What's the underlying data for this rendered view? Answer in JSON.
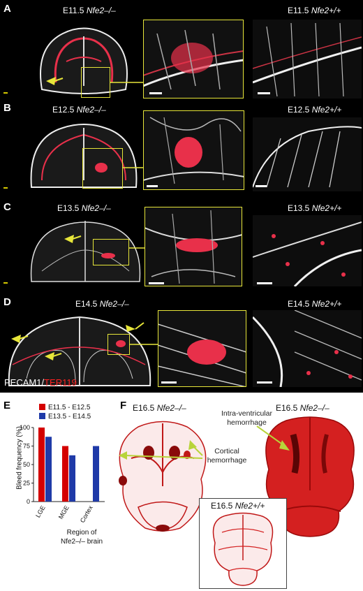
{
  "panels": {
    "A": {
      "letter": "A",
      "left": "E11.5",
      "gene": "Nfe2",
      "left_geno": "–/–",
      "right": "E11.5",
      "right_geno": "+/+"
    },
    "B": {
      "letter": "B",
      "left": "E12.5",
      "gene": "Nfe2",
      "left_geno": "–/–",
      "right": "E12.5",
      "right_geno": "+/+"
    },
    "C": {
      "letter": "C",
      "left": "E13.5",
      "gene": "Nfe2",
      "left_geno": "–/–",
      "right": "E13.5",
      "right_geno": "+/+"
    },
    "D": {
      "letter": "D",
      "left": "E14.5",
      "gene": "Nfe2",
      "left_geno": "–/–",
      "right": "E14.5",
      "right_geno": "+/+"
    },
    "E": {
      "letter": "E"
    },
    "F": {
      "letter": "F",
      "left": "E16.5",
      "gene": "Nfe2",
      "left_geno": "–/–",
      "right": "E16.5",
      "right_geno": "–/–",
      "bottom": "E16.5",
      "bottom_geno": "+/+"
    }
  },
  "stain": {
    "pecam": "PECAM1",
    "slash": "/",
    "ter": "TER119"
  },
  "annotations": {
    "ivh": "Intra-ventricular hemorrhage",
    "cortical": "Cortical hemorrhage"
  },
  "colors": {
    "red": "#d40000",
    "blue": "#1f3aa8",
    "yellow": "#e7e63a",
    "tissue_red": "#e8304a",
    "tissue_white": "#f2f2f2"
  },
  "chart_data": {
    "type": "bar",
    "categories": [
      "LGE",
      "MGE",
      "Cortex"
    ],
    "series": [
      {
        "name": "E11.5 - E12.5",
        "values": [
          100,
          75,
          0
        ],
        "color": "#d40000"
      },
      {
        "name": "E13.5 - E14.5",
        "values": [
          87.5,
          62.5,
          75
        ],
        "color": "#1f3aa8"
      }
    ],
    "ylabel": "Bleed frequency (%)",
    "xlabel": "Region of Nfe2–/– brain",
    "xlabel_line1": "Region of",
    "xlabel_line2": "Nfe2–/– brain",
    "yticks": [
      0,
      25,
      50,
      75,
      100
    ],
    "ylim": [
      0,
      100
    ]
  }
}
